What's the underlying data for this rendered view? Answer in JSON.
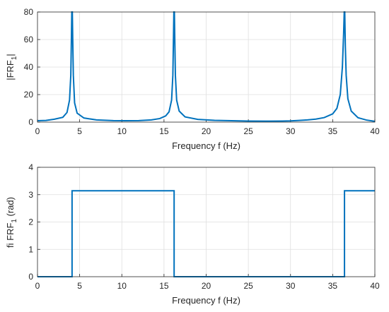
{
  "chart_data": [
    {
      "type": "line",
      "xlabel": "Frequency f  (Hz)",
      "ylabel": "|FRF",
      "ylabel_subscript": "1",
      "ylabel_suffix": "|",
      "xlim": [
        0,
        40
      ],
      "ylim": [
        0,
        80
      ],
      "xticks": [
        0,
        5,
        10,
        15,
        20,
        25,
        30,
        35,
        40
      ],
      "yticks": [
        0,
        20,
        40,
        60,
        80
      ],
      "grid": true,
      "series_color": "#0072bd",
      "resonances_hz": [
        4.1,
        16.2,
        36.4
      ],
      "series": [
        {
          "x": [
            0,
            1,
            2,
            3,
            3.5,
            3.8,
            3.95,
            4.02,
            4.07,
            4.1,
            4.13,
            4.18,
            4.25,
            4.4,
            4.7,
            5.5,
            7,
            9,
            10.5,
            12,
            13.5,
            14.5,
            15.2,
            15.6,
            15.9,
            16.05,
            16.12,
            16.17,
            16.2,
            16.23,
            16.28,
            16.35,
            16.5,
            16.8,
            17.5,
            19,
            21,
            23,
            25,
            27,
            29,
            30,
            31,
            32,
            33,
            34,
            35,
            35.5,
            35.9,
            36.15,
            36.3,
            36.37,
            36.4,
            36.43,
            36.5,
            36.6,
            36.8,
            37.2,
            38,
            39,
            40
          ],
          "y": [
            1.0,
            1.2,
            2.1,
            3.5,
            7,
            16,
            34,
            60,
            80,
            80,
            80,
            60,
            34,
            14,
            6.5,
            3,
            1.6,
            1.1,
            1.0,
            1.1,
            1.6,
            2.6,
            4.5,
            7.5,
            16,
            34,
            60,
            80,
            80,
            80,
            60,
            34,
            16,
            8,
            3.8,
            2.0,
            1.3,
            1.0,
            0.8,
            0.7,
            0.8,
            0.9,
            1.2,
            1.6,
            2.2,
            3.3,
            6,
            10,
            20,
            40,
            65,
            80,
            80,
            80,
            55,
            34,
            17,
            8,
            3.2,
            1.5,
            0.6
          ]
        }
      ]
    },
    {
      "type": "line",
      "xlabel": "Frequency f  (Hz)",
      "ylabel": "fi FRF",
      "ylabel_subscript": "1",
      "ylabel_suffix": "  (rad)",
      "xlim": [
        0,
        40
      ],
      "ylim": [
        0,
        4
      ],
      "xticks": [
        0,
        5,
        10,
        15,
        20,
        25,
        30,
        35,
        40
      ],
      "yticks": [
        0,
        1,
        2,
        3,
        4
      ],
      "grid": true,
      "series_color": "#0072bd",
      "series": [
        {
          "x": [
            0,
            4.1,
            4.1,
            16.2,
            16.2,
            36.4,
            36.4,
            40
          ],
          "y": [
            0,
            0,
            3.1416,
            3.1416,
            0,
            0,
            3.1416,
            3.1416
          ]
        }
      ]
    }
  ]
}
